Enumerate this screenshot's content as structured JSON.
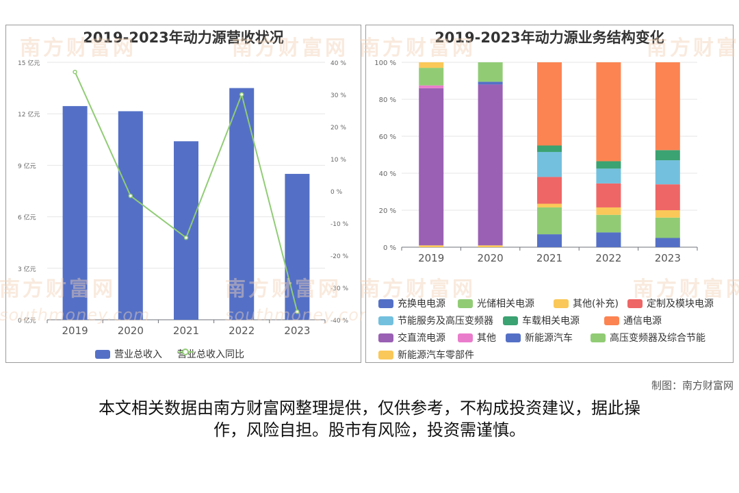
{
  "chart_data": [
    {
      "type": "bar",
      "title": "2019-2023年动力源营收状况",
      "categories": [
        "2019",
        "2020",
        "2021",
        "2022",
        "2023"
      ],
      "series": [
        {
          "name": "营业总收入",
          "type": "bar",
          "axis": "left",
          "color": "#5470c6",
          "values": [
            12.45,
            12.15,
            10.4,
            13.5,
            8.5
          ]
        },
        {
          "name": "营业总收入同比",
          "type": "line",
          "axis": "right",
          "color": "#91cc75",
          "values": [
            37,
            -1.5,
            -14.5,
            30,
            -37.5
          ]
        }
      ],
      "y_left": {
        "ticks": [
          "0 亿元",
          "3 亿元",
          "6 亿元",
          "9 亿元",
          "12 亿元",
          "15 亿元"
        ],
        "ylim": [
          0,
          15
        ]
      },
      "y_right": {
        "ticks": [
          "-40 %",
          "-30 %",
          "-20 %",
          "-10 %",
          "0 %",
          "10 %",
          "20 %",
          "30 %",
          "40 %"
        ],
        "ylim": [
          -40,
          40
        ]
      },
      "legend": "bottom",
      "grid": true
    },
    {
      "type": "bar",
      "stacked": true,
      "title": "2019-2023年动力源业务结构变化",
      "categories": [
        "2019",
        "2020",
        "2021",
        "2022",
        "2023"
      ],
      "y_ticks": [
        "0 %",
        "20 %",
        "40 %",
        "60 %",
        "80 %",
        "100 %"
      ],
      "ylim": [
        0,
        100
      ],
      "series": [
        {
          "name": "新能源汽车零部件",
          "color": "#fac858",
          "values": [
            1,
            1,
            0,
            0,
            0
          ]
        },
        {
          "name": "交直流电源",
          "color": "#9a60b4",
          "values": [
            85,
            87,
            0,
            0,
            0
          ]
        },
        {
          "name": "其他",
          "color": "#ea7ccc",
          "values": [
            1.5,
            0,
            0,
            0,
            0
          ]
        },
        {
          "name": "新能源汽车",
          "color": "#5470c6",
          "values": [
            0,
            1.5,
            0,
            0,
            0
          ]
        },
        {
          "name": "高压变频器及综合节能",
          "color": "#91cc75",
          "values": [
            9.5,
            10.5,
            0,
            0,
            0
          ]
        },
        {
          "name": "其他(补充)",
          "color": "#fac858",
          "values": [
            3,
            0,
            0,
            0,
            0
          ]
        },
        {
          "name": "充换电电源",
          "color": "#5470c6",
          "values": [
            0,
            0,
            7,
            8,
            5
          ]
        },
        {
          "name": "光储相关电源",
          "color": "#91cc75",
          "values": [
            0,
            0,
            14.5,
            9.5,
            11
          ]
        },
        {
          "name": "其他(补充)",
          "color": "#fac858",
          "values": [
            0,
            0,
            2,
            4,
            4
          ]
        },
        {
          "name": "定制及模块电源",
          "color": "#ee6666",
          "values": [
            0,
            0,
            14.5,
            13,
            14
          ]
        },
        {
          "name": "节能服务及高压变频器",
          "color": "#73c0de",
          "values": [
            0,
            0,
            13.5,
            8,
            13
          ]
        },
        {
          "name": "车载相关电源",
          "color": "#3ba272",
          "values": [
            0,
            0,
            3.5,
            4,
            5.5
          ]
        },
        {
          "name": "通信电源",
          "color": "#fc8452",
          "values": [
            0,
            0,
            45,
            53.5,
            47.5
          ]
        }
      ],
      "legend": {
        "position": "bottom",
        "items": [
          {
            "label": "充换电电源",
            "color": "#5470c6"
          },
          {
            "label": "光储相关电源",
            "color": "#91cc75"
          },
          {
            "label": "其他(补充)",
            "color": "#fac858"
          },
          {
            "label": "定制及模块电源",
            "color": "#ee6666"
          },
          {
            "label": "节能服务及高压变频器",
            "color": "#73c0de"
          },
          {
            "label": "车载相关电源",
            "color": "#3ba272"
          },
          {
            "label": "通信电源",
            "color": "#fc8452"
          },
          {
            "label": "交直流电源",
            "color": "#9a60b4"
          },
          {
            "label": "其他",
            "color": "#ea7ccc"
          },
          {
            "label": "新能源汽车",
            "color": "#5470c6"
          },
          {
            "label": "高压变频器及综合节能",
            "color": "#91cc75"
          },
          {
            "label": "新能源汽车零部件",
            "color": "#fac858"
          }
        ]
      },
      "grid": true
    }
  ],
  "watermark": {
    "text": "南方财富网",
    "sub": "southmoney.com"
  },
  "credit": "制图：南方财富网",
  "disclaimer": [
    "本文相关数据由南方财富网整理提供，仅供参考，不构成投资建议，据此操",
    "作，风险自担。股市有风险，投资需谨慎。"
  ]
}
